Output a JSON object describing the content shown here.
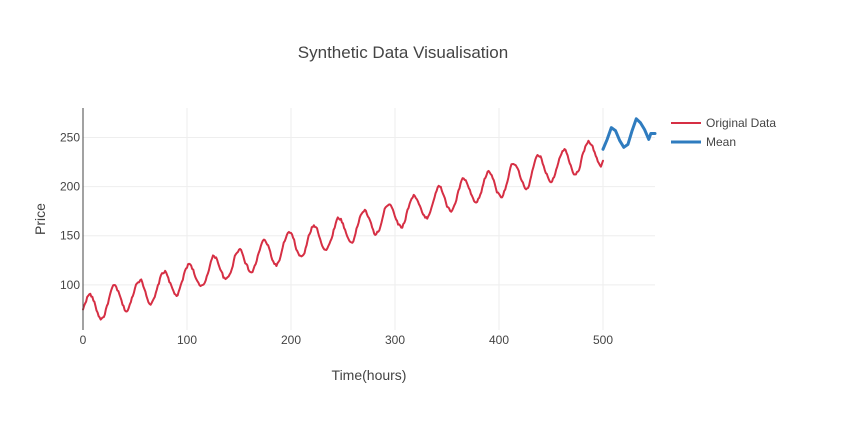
{
  "chart_data": {
    "type": "line",
    "title": "Synthetic Data Visualisation",
    "xlabel": "Time(hours)",
    "ylabel": "Price",
    "xlim": [
      0,
      550
    ],
    "ylim": [
      54,
      280
    ],
    "x_ticks": [
      0,
      100,
      200,
      300,
      400,
      500
    ],
    "y_ticks": [
      100,
      150,
      200,
      250
    ],
    "grid": true,
    "legend_position": "top-right",
    "series": [
      {
        "name": "Original Data",
        "color": "#d62f44",
        "line_width": 2,
        "model": {
          "x_start": 0,
          "x_end": 500,
          "base": 74,
          "slope": 0.325,
          "amplitude": 14,
          "period": 24,
          "noise": 3.5
        }
      },
      {
        "name": "Mean",
        "color": "#2f7cbf",
        "line_width": 3,
        "x": [
          500,
          504,
          508,
          512,
          516,
          520,
          524,
          528,
          532,
          536,
          540,
          544,
          546,
          550
        ],
        "y": [
          238,
          248,
          260,
          257,
          247,
          240,
          243,
          257,
          269,
          265,
          258,
          248,
          254,
          254
        ]
      }
    ]
  }
}
